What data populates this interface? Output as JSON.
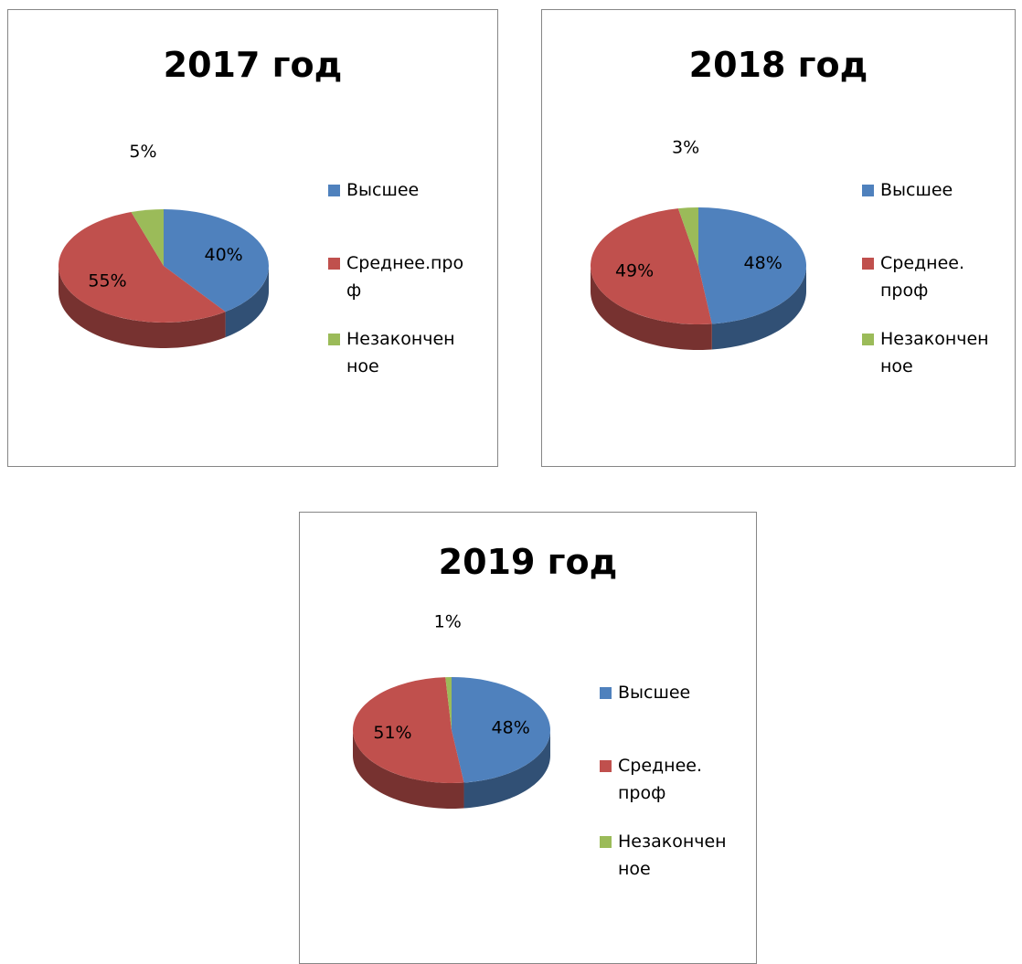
{
  "chart_data": [
    {
      "type": "pie",
      "title": "2017 год",
      "categories": [
        "Высшее",
        "Среднее.проф",
        "Незаконченное"
      ],
      "values": [
        40,
        55,
        5
      ],
      "value_labels": [
        "40%",
        "55%",
        "5%"
      ],
      "colors": [
        "#4f81bd",
        "#c0504d",
        "#9bbb59"
      ],
      "legend": "right"
    },
    {
      "type": "pie",
      "title": "2018 год",
      "categories": [
        "Высшее",
        "Среднее. проф",
        "Незаконченное"
      ],
      "values": [
        48,
        49,
        3
      ],
      "value_labels": [
        "48%",
        "49%",
        "3%"
      ],
      "colors": [
        "#4f81bd",
        "#c0504d",
        "#9bbb59"
      ],
      "legend": "right"
    },
    {
      "type": "pie",
      "title": "2019 год",
      "categories": [
        "Высшее",
        "Среднее. проф",
        "Незаконченное"
      ],
      "values": [
        48,
        51,
        1
      ],
      "value_labels": [
        "48%",
        "51%",
        "1%"
      ],
      "colors": [
        "#4f81bd",
        "#c0504d",
        "#9bbb59"
      ],
      "legend": "right"
    }
  ]
}
